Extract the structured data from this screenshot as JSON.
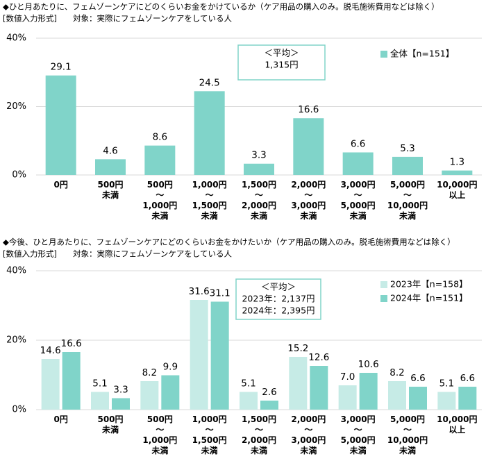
{
  "chart_data": [
    {
      "type": "bar",
      "title": "◆ひと月あたりに、フェムゾーンケアにどのくらいお金をかけているか（ケア用品の購入のみ。脱毛施術費用などは除く）",
      "subtitle": "[数値入力形式]　　対象：実際にフェムゾーンケアをしている人",
      "categories": [
        [
          "0円"
        ],
        [
          "500円",
          "未満"
        ],
        [
          "500円",
          "～",
          "1,000円",
          "未満"
        ],
        [
          "1,000円",
          "～",
          "1,500円",
          "未満"
        ],
        [
          "1,500円",
          "～",
          "2,000円",
          "未満"
        ],
        [
          "2,000円",
          "～",
          "3,000円",
          "未満"
        ],
        [
          "3,000円",
          "～",
          "5,000円",
          "未満"
        ],
        [
          "5,000円",
          "～",
          "10,000円",
          "未満"
        ],
        [
          "10,000円",
          "以上"
        ]
      ],
      "series": [
        {
          "name": "全体【n=151】",
          "color": "#80d4c9",
          "values": [
            29.1,
            4.6,
            8.6,
            24.5,
            3.3,
            16.6,
            6.6,
            5.3,
            1.3
          ],
          "value_labels": [
            "29.1",
            "4.6",
            "8.6",
            "24.5",
            "3.3",
            "16.6",
            "6.6",
            "5.3",
            "1.3"
          ]
        }
      ],
      "annotation": [
        "＜平均＞",
        "1,315円"
      ],
      "ylim": [
        0,
        40
      ],
      "yticks": [
        {
          "value": 0,
          "label": "0%"
        },
        {
          "value": 20,
          "label": "20%"
        },
        {
          "value": 40,
          "label": "40%"
        }
      ],
      "grid": true,
      "legend": "upper right"
    },
    {
      "type": "bar",
      "title": "◆今後、ひと月あたりに、フェムゾーンケアにどのくらいお金をかけたいか（ケア用品の購入のみ。脱毛施術費用などは除く）",
      "subtitle": "[数値入力形式]　　対象：実際にフェムゾーンケアをしている人",
      "categories": [
        [
          "0円"
        ],
        [
          "500円",
          "未満"
        ],
        [
          "500円",
          "～",
          "1,000円",
          "未満"
        ],
        [
          "1,000円",
          "～",
          "1,500円",
          "未満"
        ],
        [
          "1,500円",
          "～",
          "2,000円",
          "未満"
        ],
        [
          "2,000円",
          "～",
          "3,000円",
          "未満"
        ],
        [
          "3,000円",
          "～",
          "5,000円",
          "未満"
        ],
        [
          "5,000円",
          "～",
          "10,000円",
          "未満"
        ],
        [
          "10,000円",
          "以上"
        ]
      ],
      "series": [
        {
          "name": "2023年【n=158】",
          "color": "#c6ebe6",
          "values": [
            14.6,
            5.1,
            8.2,
            31.6,
            5.1,
            15.2,
            7.0,
            8.2,
            5.1
          ],
          "value_labels": [
            "14.6",
            "5.1",
            "8.2",
            "31.6",
            "5.1",
            "15.2",
            "7.0",
            "8.2",
            "5.1"
          ]
        },
        {
          "name": "2024年【n=151】",
          "color": "#80d4c9",
          "values": [
            16.6,
            3.3,
            9.9,
            31.1,
            2.6,
            12.6,
            10.6,
            6.6,
            6.6
          ],
          "value_labels": [
            "16.6",
            "3.3",
            "9.9",
            "31.1",
            "2.6",
            "12.6",
            "10.6",
            "6.6",
            "6.6"
          ]
        }
      ],
      "annotation": [
        "＜平均＞",
        "2023年：2,137円",
        "2024年：2,395円"
      ],
      "ylim": [
        0,
        40
      ],
      "yticks": [
        {
          "value": 0,
          "label": "0%"
        },
        {
          "value": 20,
          "label": "20%"
        },
        {
          "value": 40,
          "label": "40%"
        }
      ],
      "grid": true,
      "legend": "upper right"
    }
  ]
}
